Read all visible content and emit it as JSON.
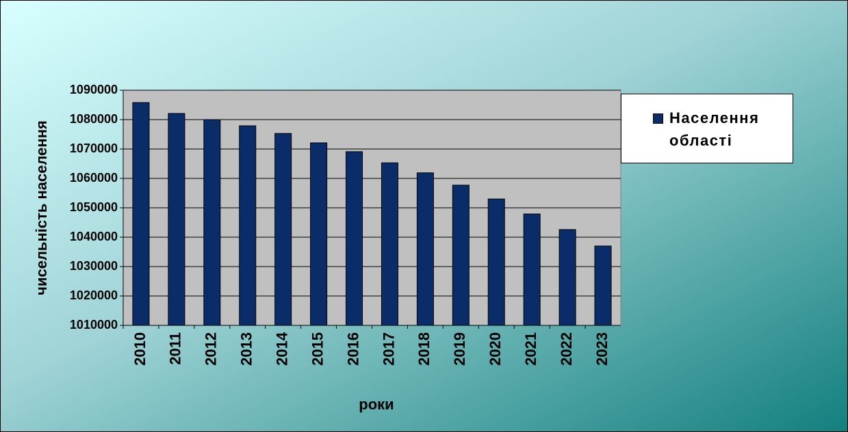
{
  "chart_data": {
    "type": "bar",
    "y_label": "чисельність населення",
    "x_label": "роки",
    "categories": [
      "2010",
      "2011",
      "2012",
      "2013",
      "2014",
      "2015",
      "2016",
      "2017",
      "2018",
      "2019",
      "2020",
      "2021",
      "2022",
      "2023"
    ],
    "series": [
      {
        "name": "Населення області",
        "color": "#0a2d6a",
        "values": [
          1085800,
          1082100,
          1080000,
          1077900,
          1075300,
          1072100,
          1069100,
          1065300,
          1061900,
          1057700,
          1053000,
          1047900,
          1042600,
          1037000
        ]
      }
    ],
    "ylim": [
      1010000,
      1090000
    ],
    "yticks": [
      1010000,
      1020000,
      1030000,
      1040000,
      1050000,
      1060000,
      1070000,
      1080000,
      1090000
    ],
    "grid": true,
    "legend": "right"
  }
}
